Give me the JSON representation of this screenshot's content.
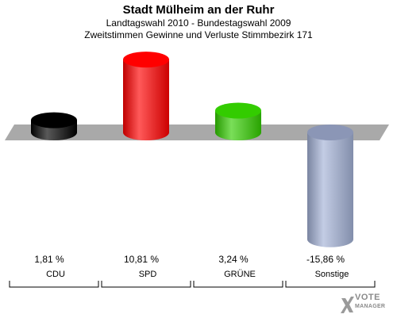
{
  "header": {
    "title": "Stadt Mülheim an der Ruhr",
    "subtitle1": "Landtagswahl 2010 - Bundestagswahl 2009",
    "subtitle2": "Zweitstimmen Gewinne und Verluste Stimmbezirk 171"
  },
  "logo": {
    "line1": "VOTE",
    "line2": "MANAGER"
  },
  "chart_data": {
    "type": "bar",
    "title": "Stadt Mülheim an der Ruhr",
    "subtitle": "Landtagswahl 2010 - Bundestagswahl 2009 / Zweitstimmen Gewinne und Verluste Stimmbezirk 171",
    "categories": [
      "CDU",
      "SPD",
      "GRÜNE",
      "Sonstige"
    ],
    "values": [
      1.81,
      10.81,
      3.24,
      -15.86
    ],
    "labels": [
      "1,81 %",
      "10,81 %",
      "3,24 %",
      "-15,86 %"
    ],
    "colors": [
      "#000000",
      "#ff0000",
      "#33cc00",
      "#a3b1d6"
    ],
    "unit": "%",
    "grid": false,
    "legend": "none"
  }
}
